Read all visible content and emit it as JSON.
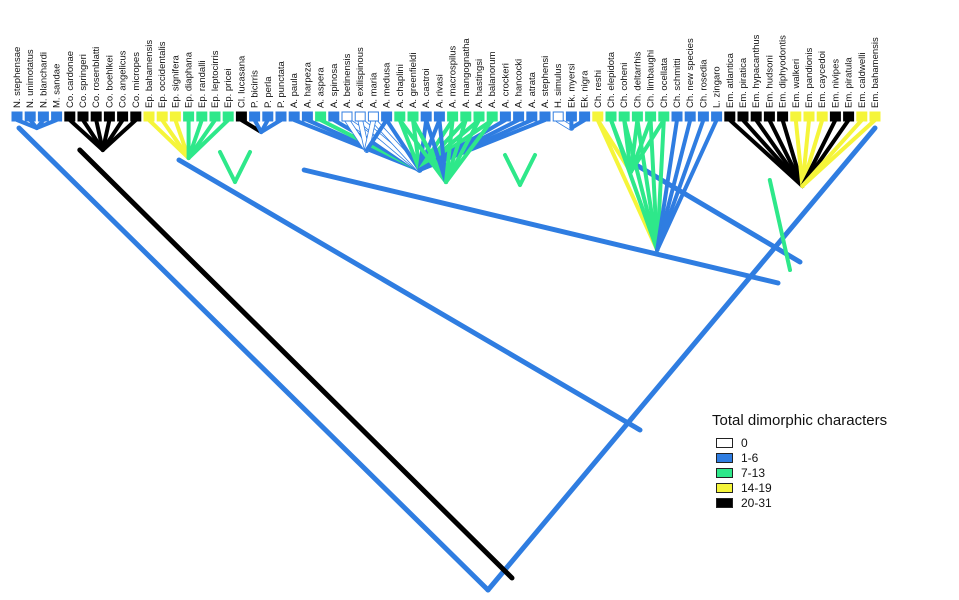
{
  "legend": {
    "title": "Total dimorphic characters",
    "items": [
      {
        "label": "0",
        "color": "#ffffff"
      },
      {
        "label": "1-6",
        "color": "#2f7de1"
      },
      {
        "label": "7-13",
        "color": "#2ee88a"
      },
      {
        "label": "14-19",
        "color": "#f5f53a"
      },
      {
        "label": "20-31",
        "color": "#000000"
      }
    ]
  },
  "taxa": [
    {
      "name": "N. stephensae",
      "class": 1
    },
    {
      "name": "N. unimotatus",
      "class": 1
    },
    {
      "name": "N. blanchardi",
      "class": 1
    },
    {
      "name": "M. sandae",
      "class": 1
    },
    {
      "name": "Co. cardonae",
      "class": 4
    },
    {
      "name": "Co. springeri",
      "class": 4
    },
    {
      "name": "Co. rosenblatti",
      "class": 4
    },
    {
      "name": "Co. boehlkei",
      "class": 4
    },
    {
      "name": "Co. angelicus",
      "class": 4
    },
    {
      "name": "Co. micropes",
      "class": 4
    },
    {
      "name": "Ep. bahamensis",
      "class": 3
    },
    {
      "name": "Ep. occidentalis",
      "class": 3
    },
    {
      "name": "Ep. signifera",
      "class": 3
    },
    {
      "name": "Ep. diaphana",
      "class": 2
    },
    {
      "name": "Ep. randalli",
      "class": 2
    },
    {
      "name": "Ep. leptocirris",
      "class": 2
    },
    {
      "name": "Ep. pricei",
      "class": 2
    },
    {
      "name": "Cl. lucasana",
      "class": 4
    },
    {
      "name": "P. bicirris",
      "class": 1
    },
    {
      "name": "P. perla",
      "class": 1
    },
    {
      "name": "P. punctata",
      "class": 1
    },
    {
      "name": "A. paula",
      "class": 1
    },
    {
      "name": "A. harpeza",
      "class": 1
    },
    {
      "name": "A. aspera",
      "class": 2
    },
    {
      "name": "A. spinosa",
      "class": 1
    },
    {
      "name": "A. betinensis",
      "class": 0
    },
    {
      "name": "A. exilispinous",
      "class": 0
    },
    {
      "name": "A. maria",
      "class": 0
    },
    {
      "name": "A. medusa",
      "class": 1
    },
    {
      "name": "A. chaplini",
      "class": 2
    },
    {
      "name": "A. greenfieldi",
      "class": 2
    },
    {
      "name": "A. castroi",
      "class": 1
    },
    {
      "name": "A. rivasi",
      "class": 1
    },
    {
      "name": "A. macrospilus",
      "class": 2
    },
    {
      "name": "A. mangognatha",
      "class": 2
    },
    {
      "name": "A. hastingsi",
      "class": 2
    },
    {
      "name": "A. balanorum",
      "class": 2
    },
    {
      "name": "A. crockeri",
      "class": 1
    },
    {
      "name": "A. hancocki",
      "class": 1
    },
    {
      "name": "A. atrata",
      "class": 1
    },
    {
      "name": "A. stephensi",
      "class": 1
    },
    {
      "name": "H. simulus",
      "class": 0
    },
    {
      "name": "Ek. myersi",
      "class": 1
    },
    {
      "name": "Ek. nigra",
      "class": 1
    },
    {
      "name": "Ch. reshi",
      "class": 3
    },
    {
      "name": "Ch. elepidota",
      "class": 2
    },
    {
      "name": "Ch. coheni",
      "class": 2
    },
    {
      "name": "Ch. deltarrhis",
      "class": 2
    },
    {
      "name": "Ch. limbaughi",
      "class": 2
    },
    {
      "name": "Ch. ocellata",
      "class": 2
    },
    {
      "name": "Ch. schmitti",
      "class": 1
    },
    {
      "name": "Ch. new species",
      "class": 1
    },
    {
      "name": "Ch. rosedia",
      "class": 1
    },
    {
      "name": "L. zingaro",
      "class": 1
    },
    {
      "name": "Em. atlantica",
      "class": 4
    },
    {
      "name": "Em. piratica",
      "class": 4
    },
    {
      "name": "Em. hypacanthus",
      "class": 4
    },
    {
      "name": "Em. hudsoni",
      "class": 4
    },
    {
      "name": "Em. diphyodontis",
      "class": 4
    },
    {
      "name": "Em. walkeri",
      "class": 3
    },
    {
      "name": "Em. pandionis",
      "class": 3
    },
    {
      "name": "Em. caycedoi",
      "class": 3
    },
    {
      "name": "Em. nivipes",
      "class": 4
    },
    {
      "name": "Em. piratula",
      "class": 4
    },
    {
      "name": "Em. caldwelli",
      "class": 3
    },
    {
      "name": "Em. bahamensis",
      "class": 3
    }
  ]
}
